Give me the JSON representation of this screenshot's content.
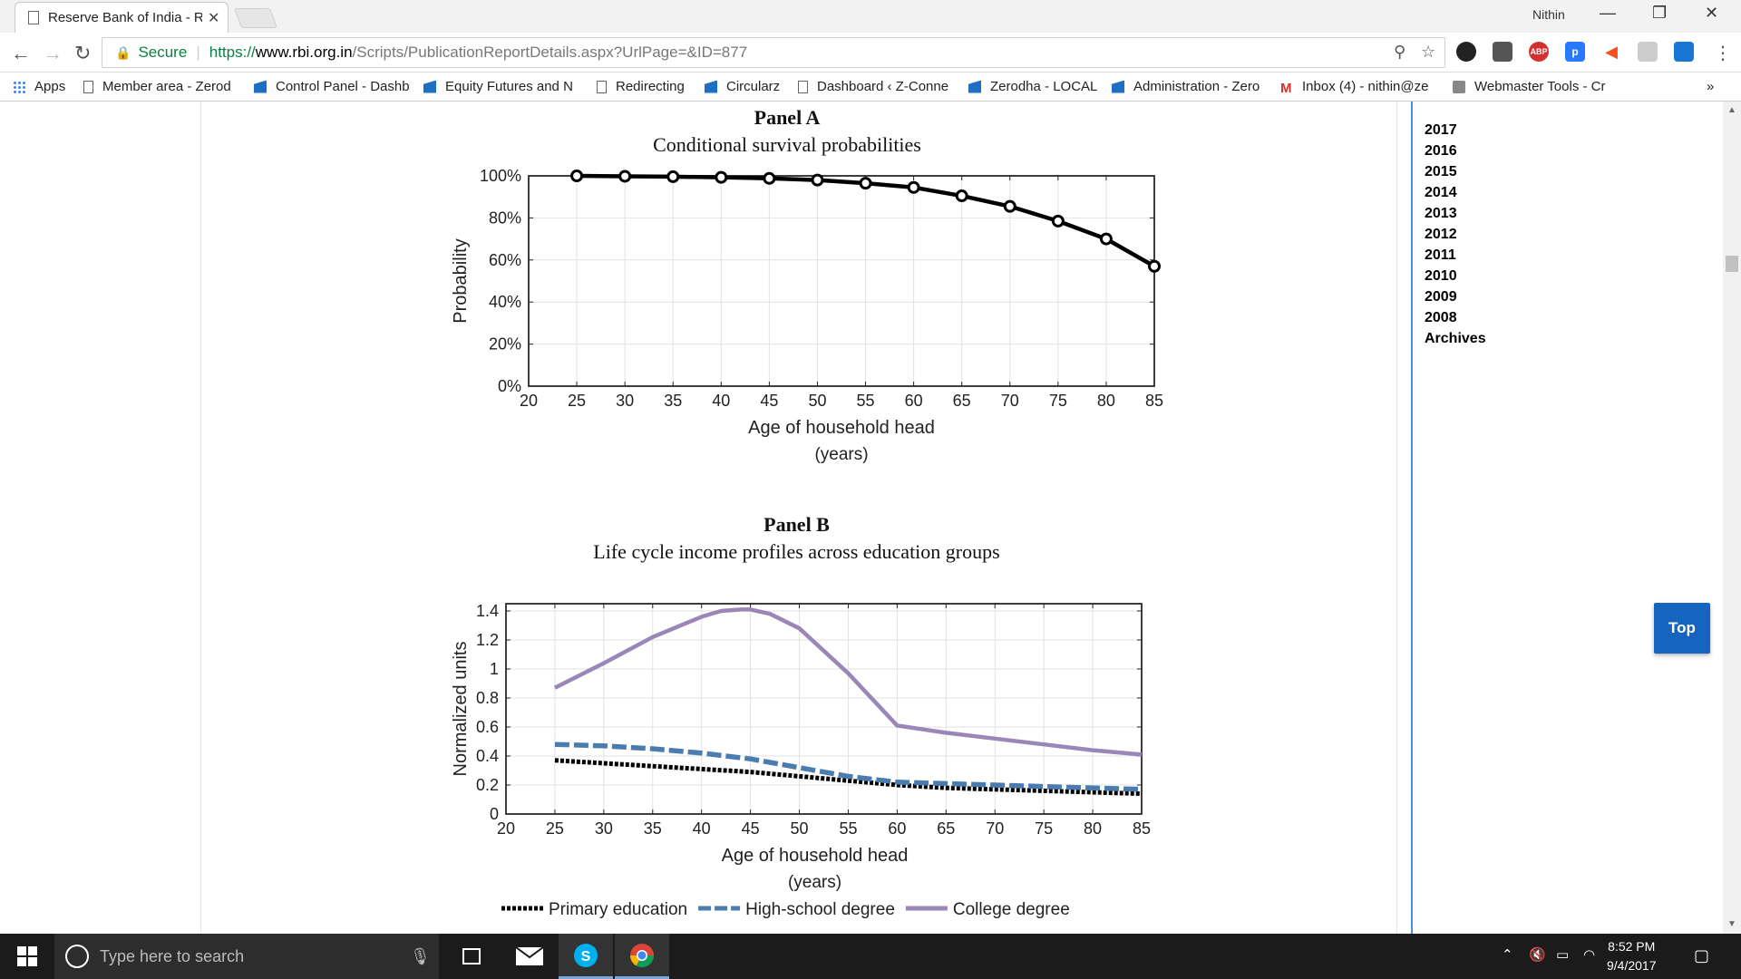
{
  "browser": {
    "tab_title": "Reserve Bank of India - R",
    "user_name": "Nithin",
    "secure_label": "Secure",
    "url_scheme": "https://",
    "url_host": "www.rbi.org.in",
    "url_path": "/Scripts/PublicationReportDetails.aspx?UrlPage=&ID=877"
  },
  "bookmarks": [
    {
      "label": "Apps",
      "icon": "apps-grid-icon"
    },
    {
      "label": "Member area - Zerod",
      "icon": "page-icon"
    },
    {
      "label": "Control Panel - Dashb",
      "icon": "bookmark-blue-icon"
    },
    {
      "label": "Equity Futures and N",
      "icon": "bookmark-blue-icon"
    },
    {
      "label": "Redirecting",
      "icon": "page-icon"
    },
    {
      "label": "Circularz",
      "icon": "bookmark-blue-icon"
    },
    {
      "label": "Dashboard ‹ Z-Conne",
      "icon": "page-icon"
    },
    {
      "label": "Zerodha - LOCAL",
      "icon": "bookmark-blue-icon"
    },
    {
      "label": "Administration - Zero",
      "icon": "bookmark-blue-icon"
    },
    {
      "label": "Inbox (4) - nithin@ze",
      "icon": "gmail-icon"
    },
    {
      "label": "Webmaster Tools - Cr",
      "icon": "webmaster-icon"
    }
  ],
  "sidebar": {
    "years": [
      "2017",
      "2016",
      "2015",
      "2014",
      "2013",
      "2012",
      "2011",
      "2010",
      "2009",
      "2008",
      "Archives"
    ]
  },
  "top_button": "Top",
  "taskbar": {
    "search_placeholder": "Type here to search",
    "time": "8:52 PM",
    "date": "9/4/2017"
  },
  "chart_data": [
    {
      "type": "line",
      "panel": "Panel A",
      "title": "Conditional survival probabilities",
      "xlabel": "Age of household head",
      "xlabel2": "(years)",
      "ylabel": "Probability",
      "xlim": [
        20,
        85
      ],
      "ylim": [
        0,
        100
      ],
      "x_ticks": [
        "20",
        "25",
        "30",
        "35",
        "40",
        "45",
        "50",
        "55",
        "60",
        "65",
        "70",
        "75",
        "80",
        "85"
      ],
      "y_ticks": [
        "0%",
        "20%",
        "40%",
        "60%",
        "80%",
        "100%"
      ],
      "grid": true,
      "series": [
        {
          "x": [
            25,
            30,
            35,
            40,
            45,
            50,
            55,
            60,
            65,
            70,
            75,
            80,
            85
          ],
          "values": [
            100,
            99.8,
            99.6,
            99.3,
            98.8,
            98,
            96.5,
            94.5,
            90.5,
            85.5,
            78.5,
            70,
            57
          ],
          "color": "#000000",
          "markers": true
        }
      ]
    },
    {
      "type": "line",
      "panel": "Panel B",
      "title": "Life cycle income profiles across education groups",
      "xlabel": "Age of household head",
      "xlabel2": "(years)",
      "ylabel": "Normalized units",
      "xlim": [
        20,
        85
      ],
      "ylim": [
        0,
        1.45
      ],
      "x_ticks": [
        "20",
        "25",
        "30",
        "35",
        "40",
        "45",
        "50",
        "55",
        "60",
        "65",
        "70",
        "75",
        "80",
        "85"
      ],
      "y_ticks": [
        "0",
        "0.2",
        "0.4",
        "0.6",
        "0.8",
        "1",
        "1.2",
        "1.4"
      ],
      "grid": true,
      "legend": "bottom",
      "series": [
        {
          "name": "Primary education",
          "x": [
            25,
            30,
            35,
            40,
            45,
            50,
            55,
            60,
            65,
            70,
            75,
            80,
            85
          ],
          "values": [
            0.37,
            0.35,
            0.33,
            0.31,
            0.29,
            0.26,
            0.23,
            0.2,
            0.18,
            0.17,
            0.16,
            0.15,
            0.14
          ],
          "color": "#000000",
          "style": "dotted"
        },
        {
          "name": "High-school degree",
          "x": [
            25,
            30,
            35,
            40,
            45,
            50,
            55,
            60,
            65,
            70,
            75,
            80,
            85
          ],
          "values": [
            0.48,
            0.47,
            0.45,
            0.42,
            0.38,
            0.32,
            0.26,
            0.22,
            0.21,
            0.2,
            0.19,
            0.18,
            0.17
          ],
          "color": "#4a7cb0",
          "style": "dashed"
        },
        {
          "name": "College degree",
          "x": [
            25,
            30,
            35,
            40,
            42,
            44,
            45,
            47,
            50,
            55,
            60,
            65,
            70,
            75,
            80,
            85
          ],
          "values": [
            0.87,
            1.04,
            1.22,
            1.36,
            1.4,
            1.41,
            1.41,
            1.38,
            1.28,
            0.97,
            0.61,
            0.56,
            0.52,
            0.48,
            0.44,
            0.41
          ],
          "color": "#9b86b8",
          "style": "solid"
        }
      ]
    }
  ]
}
